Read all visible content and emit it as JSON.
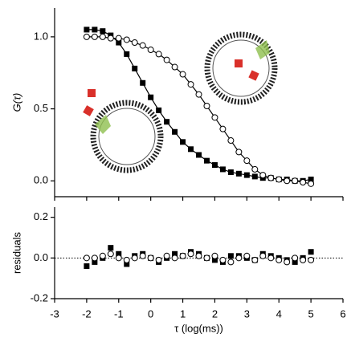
{
  "chart_data": [
    {
      "type": "scatter",
      "ylabel": "G(τ)",
      "x": [
        -2,
        -1.75,
        -1.5,
        -1.25,
        -1,
        -0.75,
        -0.5,
        -0.25,
        0,
        0.25,
        0.5,
        0.75,
        1,
        1.25,
        1.5,
        1.75,
        2,
        2.25,
        2.5,
        2.75,
        3,
        3.25,
        3.5,
        3.75,
        4,
        4.25,
        4.5,
        4.75,
        5
      ],
      "series": [
        {
          "marker": "square",
          "color": "#000000",
          "fit_line": true,
          "values": [
            1.05,
            1.05,
            1.04,
            1.01,
            0.96,
            0.88,
            0.78,
            0.68,
            0.58,
            0.49,
            0.41,
            0.34,
            0.27,
            0.22,
            0.18,
            0.14,
            0.11,
            0.08,
            0.06,
            0.05,
            0.04,
            0.03,
            0.02,
            0.02,
            0.01,
            0.01,
            0.0,
            0.0,
            0.01
          ]
        },
        {
          "marker": "circle",
          "color": "#000000",
          "fit_line": true,
          "values": [
            1.0,
            1.0,
            1.0,
            0.99,
            0.99,
            0.98,
            0.96,
            0.94,
            0.91,
            0.88,
            0.84,
            0.79,
            0.74,
            0.67,
            0.6,
            0.52,
            0.44,
            0.36,
            0.28,
            0.2,
            0.14,
            0.08,
            0.04,
            0.02,
            0.01,
            0.0,
            0.0,
            -0.01,
            -0.02
          ]
        }
      ],
      "xlim": [
        -3,
        6
      ],
      "xticks": [
        -3,
        -2,
        -1,
        0,
        1,
        2,
        3,
        4,
        5,
        6
      ],
      "ylim": [
        -0.11,
        1.2
      ],
      "yticks": [
        {
          "value": 0,
          "label": "0.0"
        },
        {
          "value": 0.5,
          "label": "0.5"
        },
        {
          "value": 1,
          "label": "1.0"
        }
      ]
    },
    {
      "type": "scatter",
      "ylabel": "residuals",
      "xlabel": "τ (log(ms))",
      "zero_line": true,
      "x": [
        -2,
        -1.75,
        -1.5,
        -1.25,
        -1,
        -0.75,
        -0.5,
        -0.25,
        0,
        0.25,
        0.5,
        0.75,
        1,
        1.25,
        1.5,
        1.75,
        2,
        2.25,
        2.5,
        2.75,
        3,
        3.25,
        3.5,
        3.75,
        4,
        4.25,
        4.5,
        4.75,
        5
      ],
      "series": [
        {
          "marker": "square",
          "color": "#000000",
          "values": [
            -0.04,
            -0.02,
            0.0,
            0.05,
            0.02,
            -0.03,
            0.01,
            0.02,
            0.0,
            -0.02,
            0.0,
            0.02,
            0.01,
            0.03,
            0.02,
            0.0,
            -0.01,
            -0.02,
            0.01,
            0.01,
            0.0,
            -0.01,
            0.02,
            0.01,
            0.0,
            -0.01,
            -0.02,
            0.0,
            0.03
          ]
        },
        {
          "marker": "circle",
          "color": "#000000",
          "values": [
            0.0,
            0.0,
            0.01,
            0.02,
            0.0,
            -0.01,
            0.0,
            0.01,
            0.0,
            -0.01,
            0.01,
            0.0,
            0.01,
            0.02,
            0.01,
            0.0,
            0.01,
            -0.01,
            -0.02,
            0.0,
            0.01,
            -0.01,
            0.01,
            0.0,
            -0.01,
            -0.02,
            0.0,
            -0.01,
            -0.01
          ]
        }
      ],
      "xlim": [
        -3,
        6
      ],
      "xticks": [
        -3,
        -2,
        -1,
        0,
        1,
        2,
        3,
        4,
        5,
        6
      ],
      "ylim": [
        -0.2,
        0.25
      ],
      "yticks": [
        {
          "value": -0.2,
          "label": "-0.2"
        },
        {
          "value": 0,
          "label": "0.0"
        },
        {
          "value": 0.2,
          "label": "0.2"
        }
      ]
    }
  ]
}
